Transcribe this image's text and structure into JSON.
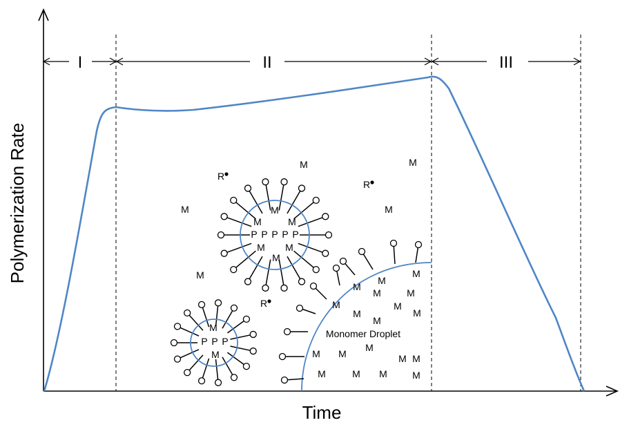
{
  "axes": {
    "x_label": "Time",
    "y_label": "Polymerization Rate"
  },
  "phases": [
    "I",
    "II",
    "III"
  ],
  "molecule_labels": {
    "monomer": "M",
    "polymer": "P",
    "radical": "R"
  },
  "droplet_label": "Monomer Droplet",
  "colors": {
    "curve": "#4f86c6",
    "membrane": "#4f86c6",
    "ink": "#000000"
  }
}
